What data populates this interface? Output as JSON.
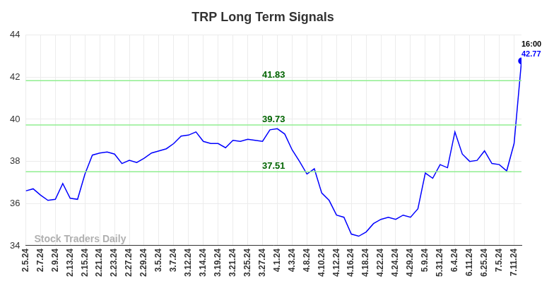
{
  "chart_data": {
    "type": "line",
    "title": "TRP Long Term Signals",
    "categories": [
      "2.5.24",
      null,
      "2.7.24",
      null,
      "2.9.24",
      null,
      "2.13.24",
      null,
      "2.15.24",
      null,
      "2.21.24",
      null,
      "2.23.24",
      null,
      "2.27.24",
      null,
      "2.29.24",
      null,
      "3.5.24",
      null,
      "3.7.24",
      null,
      "3.12.24",
      null,
      "3.14.24",
      null,
      "3.19.24",
      null,
      "3.21.24",
      null,
      "3.25.24",
      null,
      "3.27.24",
      null,
      "4.1.24",
      null,
      "4.3.24",
      null,
      "4.8.24",
      null,
      "4.10.24",
      null,
      "4.12.24",
      null,
      "4.16.24",
      null,
      "4.18.24",
      null,
      "4.22.24",
      null,
      "4.24.24",
      null,
      "4.29.24",
      null,
      "5.9.24",
      null,
      "5.31.24",
      null,
      "6.4.24",
      null,
      "6.11.24",
      null,
      "6.25.24",
      null,
      "7.5.24",
      null,
      "7.11.24",
      null
    ],
    "values": [
      36.6,
      36.7,
      36.4,
      36.15,
      36.2,
      36.95,
      36.25,
      36.2,
      37.4,
      38.3,
      38.4,
      38.45,
      38.35,
      37.9,
      38.05,
      37.95,
      38.15,
      38.4,
      38.5,
      38.6,
      38.85,
      39.2,
      39.25,
      39.4,
      38.95,
      38.85,
      38.85,
      38.65,
      39.0,
      38.95,
      39.05,
      39.0,
      38.95,
      39.5,
      39.55,
      39.3,
      38.55,
      38.0,
      37.4,
      37.65,
      36.5,
      36.15,
      35.45,
      35.35,
      34.55,
      34.45,
      34.65,
      35.05,
      35.25,
      35.35,
      35.25,
      35.45,
      35.35,
      35.75,
      37.45,
      37.2,
      37.85,
      37.7,
      39.4,
      38.35,
      38.0,
      38.05,
      38.5,
      37.9,
      37.85,
      37.55,
      38.85,
      42.77
    ],
    "color": "#0000ff",
    "ylim": [
      34,
      44
    ],
    "yticks": [
      34,
      36,
      38,
      40,
      42,
      44
    ],
    "grid": true,
    "hlines": [
      41.83,
      39.73,
      37.51
    ],
    "last_point_label": "16:00",
    "watermark": "Stock Traders Daily"
  }
}
